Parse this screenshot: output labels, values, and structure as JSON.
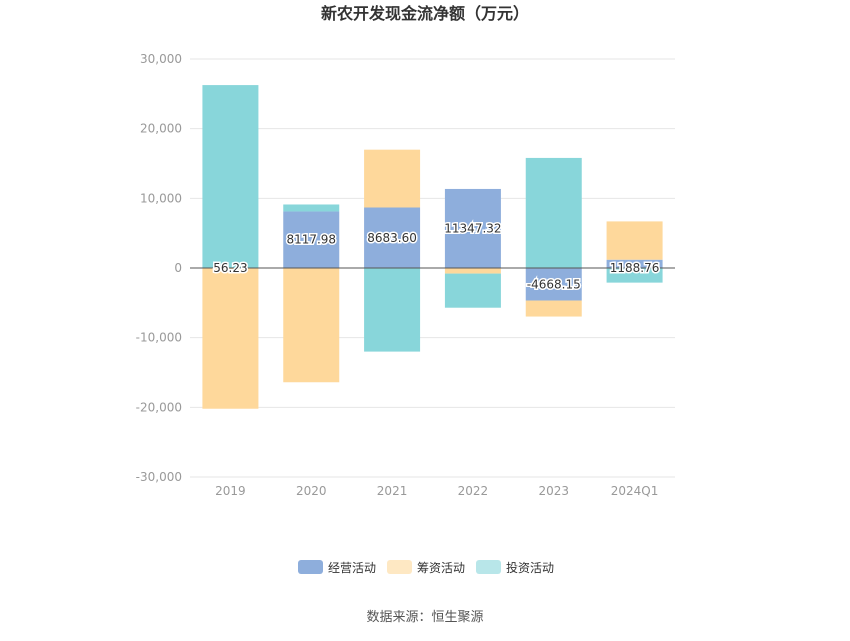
{
  "chart_data": {
    "type": "bar",
    "stacked": true,
    "title": "新农开发现金流净额（万元）",
    "categories": [
      "2019",
      "2020",
      "2021",
      "2022",
      "2023",
      "2024Q1"
    ],
    "series": [
      {
        "name": "经营活动",
        "color": "#8eaedc",
        "values": [
          56.23,
          8117.98,
          8683.6,
          11347.32,
          -4668.15,
          1188.76
        ]
      },
      {
        "name": "筹资活动",
        "color": "#fed89b",
        "values": [
          -20200,
          -16400,
          8300,
          -800,
          -2300,
          5500
        ]
      },
      {
        "name": "投资活动",
        "color": "#88d6da",
        "values": [
          26200,
          1000,
          -12000,
          -4900,
          15800,
          -2100
        ]
      }
    ],
    "data_labels": [
      "56.23",
      "8117.98",
      "8683.60",
      "11347.32",
      "-4668.15",
      "1188.76"
    ],
    "ylim": [
      -30000,
      30000
    ],
    "yticks": [
      30000,
      20000,
      10000,
      0,
      -10000,
      -20000,
      -30000
    ],
    "ytick_labels": [
      "30,000",
      "20,000",
      "10,000",
      "0",
      "-10,000",
      "-20,000",
      "-30,000"
    ],
    "grid": true,
    "legend_position": "bottom",
    "source": "数据来源：恒生聚源"
  }
}
